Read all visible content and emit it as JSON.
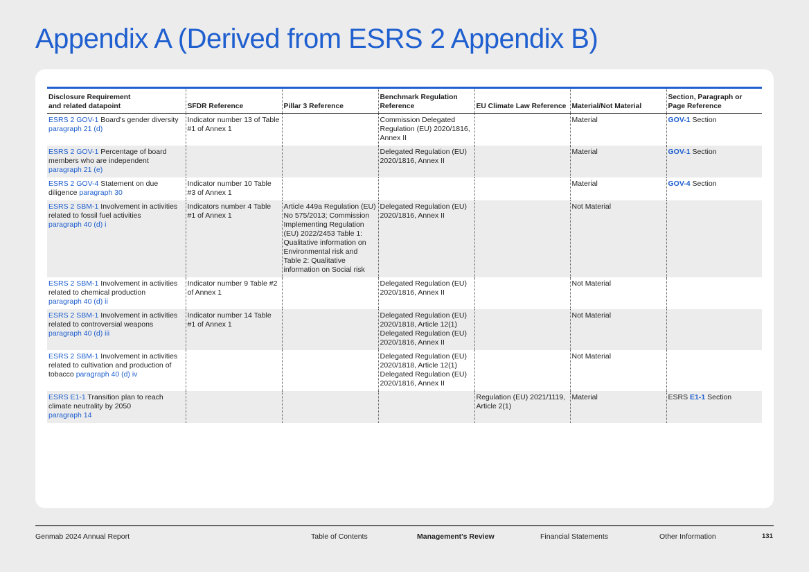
{
  "page_title": "Appendix A (Derived from ESRS 2 Appendix B)",
  "table": {
    "headers": [
      [
        "Disclosure Requirement",
        "and related datapoint"
      ],
      [
        "SFDR Reference"
      ],
      [
        "Pillar 3 Reference"
      ],
      [
        "Benchmark Regulation",
        "Reference"
      ],
      [
        "EU Climate Law Reference"
      ],
      [
        "Material/Not Material"
      ],
      [
        "Section, Paragraph or",
        "Page Reference"
      ]
    ],
    "rows": [
      [
        [
          {
            "t": "ESRS 2 GOV-1",
            "s": "lnk"
          },
          {
            "t": " Board's gender diversity "
          },
          {
            "t": "paragraph 21 (d)",
            "s": "lnk",
            "br": true
          }
        ],
        [
          {
            "t": "Indicator number 13 of Table #1 of Annex 1"
          }
        ],
        [],
        [
          {
            "t": "Commission Delegated Regulation (EU) 2020/1816, Annex II"
          }
        ],
        [],
        [
          {
            "t": "Material"
          }
        ],
        [
          {
            "t": "GOV-1",
            "s": "lnk b"
          },
          {
            "t": " Section"
          }
        ]
      ],
      [
        [
          {
            "t": "ESRS 2 GOV-1",
            "s": "lnk"
          },
          {
            "t": " Percentage of board members who are independent "
          },
          {
            "t": "paragraph 21 (e)",
            "s": "lnk",
            "br": true
          }
        ],
        [],
        [],
        [
          {
            "t": "Delegated Regulation (EU) 2020/1816, Annex II"
          }
        ],
        [],
        [
          {
            "t": "Material"
          }
        ],
        [
          {
            "t": "GOV-1",
            "s": "lnk b"
          },
          {
            "t": " Section"
          }
        ]
      ],
      [
        [
          {
            "t": "ESRS 2 GOV-4",
            "s": "lnk"
          },
          {
            "t": " Statement on due diligence "
          },
          {
            "t": "paragraph 30",
            "s": "lnk"
          }
        ],
        [
          {
            "t": "Indicator number 10 Table #3 of Annex 1"
          }
        ],
        [],
        [],
        [],
        [
          {
            "t": "Material"
          }
        ],
        [
          {
            "t": "GOV-4",
            "s": "lnk b"
          },
          {
            "t": " Section"
          }
        ]
      ],
      [
        [
          {
            "t": "ESRS 2 SBM-1",
            "s": "lnk"
          },
          {
            "t": " Involvement in activities related to fossil fuel activities "
          },
          {
            "t": "paragraph 40 (d) i",
            "s": "lnk",
            "br": true
          }
        ],
        [
          {
            "t": "Indicators number 4 Table #1 of Annex 1"
          }
        ],
        [
          {
            "t": "Article 449a Regulation (EU) No 575/2013; Commission Implementing Regulation (EU) 2022/2453 Table 1: Qualitative information on Environmental risk and Table 2: Qualitative information on Social risk"
          }
        ],
        [
          {
            "t": "Delegated Regulation (EU) 2020/1816, Annex II"
          }
        ],
        [],
        [
          {
            "t": "Not Material"
          }
        ],
        []
      ],
      [
        [
          {
            "t": "ESRS 2 SBM-1",
            "s": "lnk"
          },
          {
            "t": " Involvement in activities related to chemical production "
          },
          {
            "t": "paragraph 40 (d) ii",
            "s": "lnk",
            "br": true
          }
        ],
        [
          {
            "t": "Indicator number 9 Table #2 of Annex 1"
          }
        ],
        [],
        [
          {
            "t": "Delegated Regulation (EU) 2020/1816, Annex II"
          }
        ],
        [],
        [
          {
            "t": "Not Material"
          }
        ],
        []
      ],
      [
        [
          {
            "t": "ESRS 2 SBM-1",
            "s": "lnk"
          },
          {
            "t": " Involvement in activities related to controversial weapons "
          },
          {
            "t": "paragraph 40 (d) iii",
            "s": "lnk",
            "br": true
          }
        ],
        [
          {
            "t": "Indicator number 14 Table #1 of Annex 1"
          }
        ],
        [],
        [
          {
            "t": "Delegated Regulation (EU) 2020/1818, Article 12(1) Delegated Regulation (EU) 2020/1816, Annex II"
          }
        ],
        [],
        [
          {
            "t": "Not Material"
          }
        ],
        []
      ],
      [
        [
          {
            "t": "ESRS 2 SBM-1",
            "s": "lnk"
          },
          {
            "t": " Involvement in activities related to cultivation and production of tobacco "
          },
          {
            "t": "paragraph 40 (d) iv",
            "s": "lnk"
          }
        ],
        [],
        [],
        [
          {
            "t": "Delegated Regulation (EU) 2020/1818, Article 12(1) Delegated Regulation (EU) 2020/1816, Annex II"
          }
        ],
        [],
        [
          {
            "t": "Not Material"
          }
        ],
        []
      ],
      [
        [
          {
            "t": "ESRS E1-1",
            "s": "lnk"
          },
          {
            "t": " Transition plan to reach climate neutrality by 2050 "
          },
          {
            "t": "paragraph 14",
            "s": "lnk",
            "br": true
          }
        ],
        [],
        [],
        [],
        [
          {
            "t": "Regulation (EU) 2021/1119, Article 2(1)"
          }
        ],
        [
          {
            "t": "Material"
          }
        ],
        [
          {
            "t": "ESRS "
          },
          {
            "t": "E1-1",
            "s": "lnk b"
          },
          {
            "t": " Section"
          }
        ]
      ]
    ]
  },
  "footer": {
    "report_name": "Genmab 2024 Annual Report",
    "nav": [
      "Table of Contents",
      "Management's Review",
      "Financial Statements",
      "Other Information"
    ],
    "active_nav": "Management's Review",
    "page_number": "131"
  },
  "colors": {
    "accent": "#1f5fcf",
    "row_alt": "#ececec",
    "background": "#ececec"
  }
}
